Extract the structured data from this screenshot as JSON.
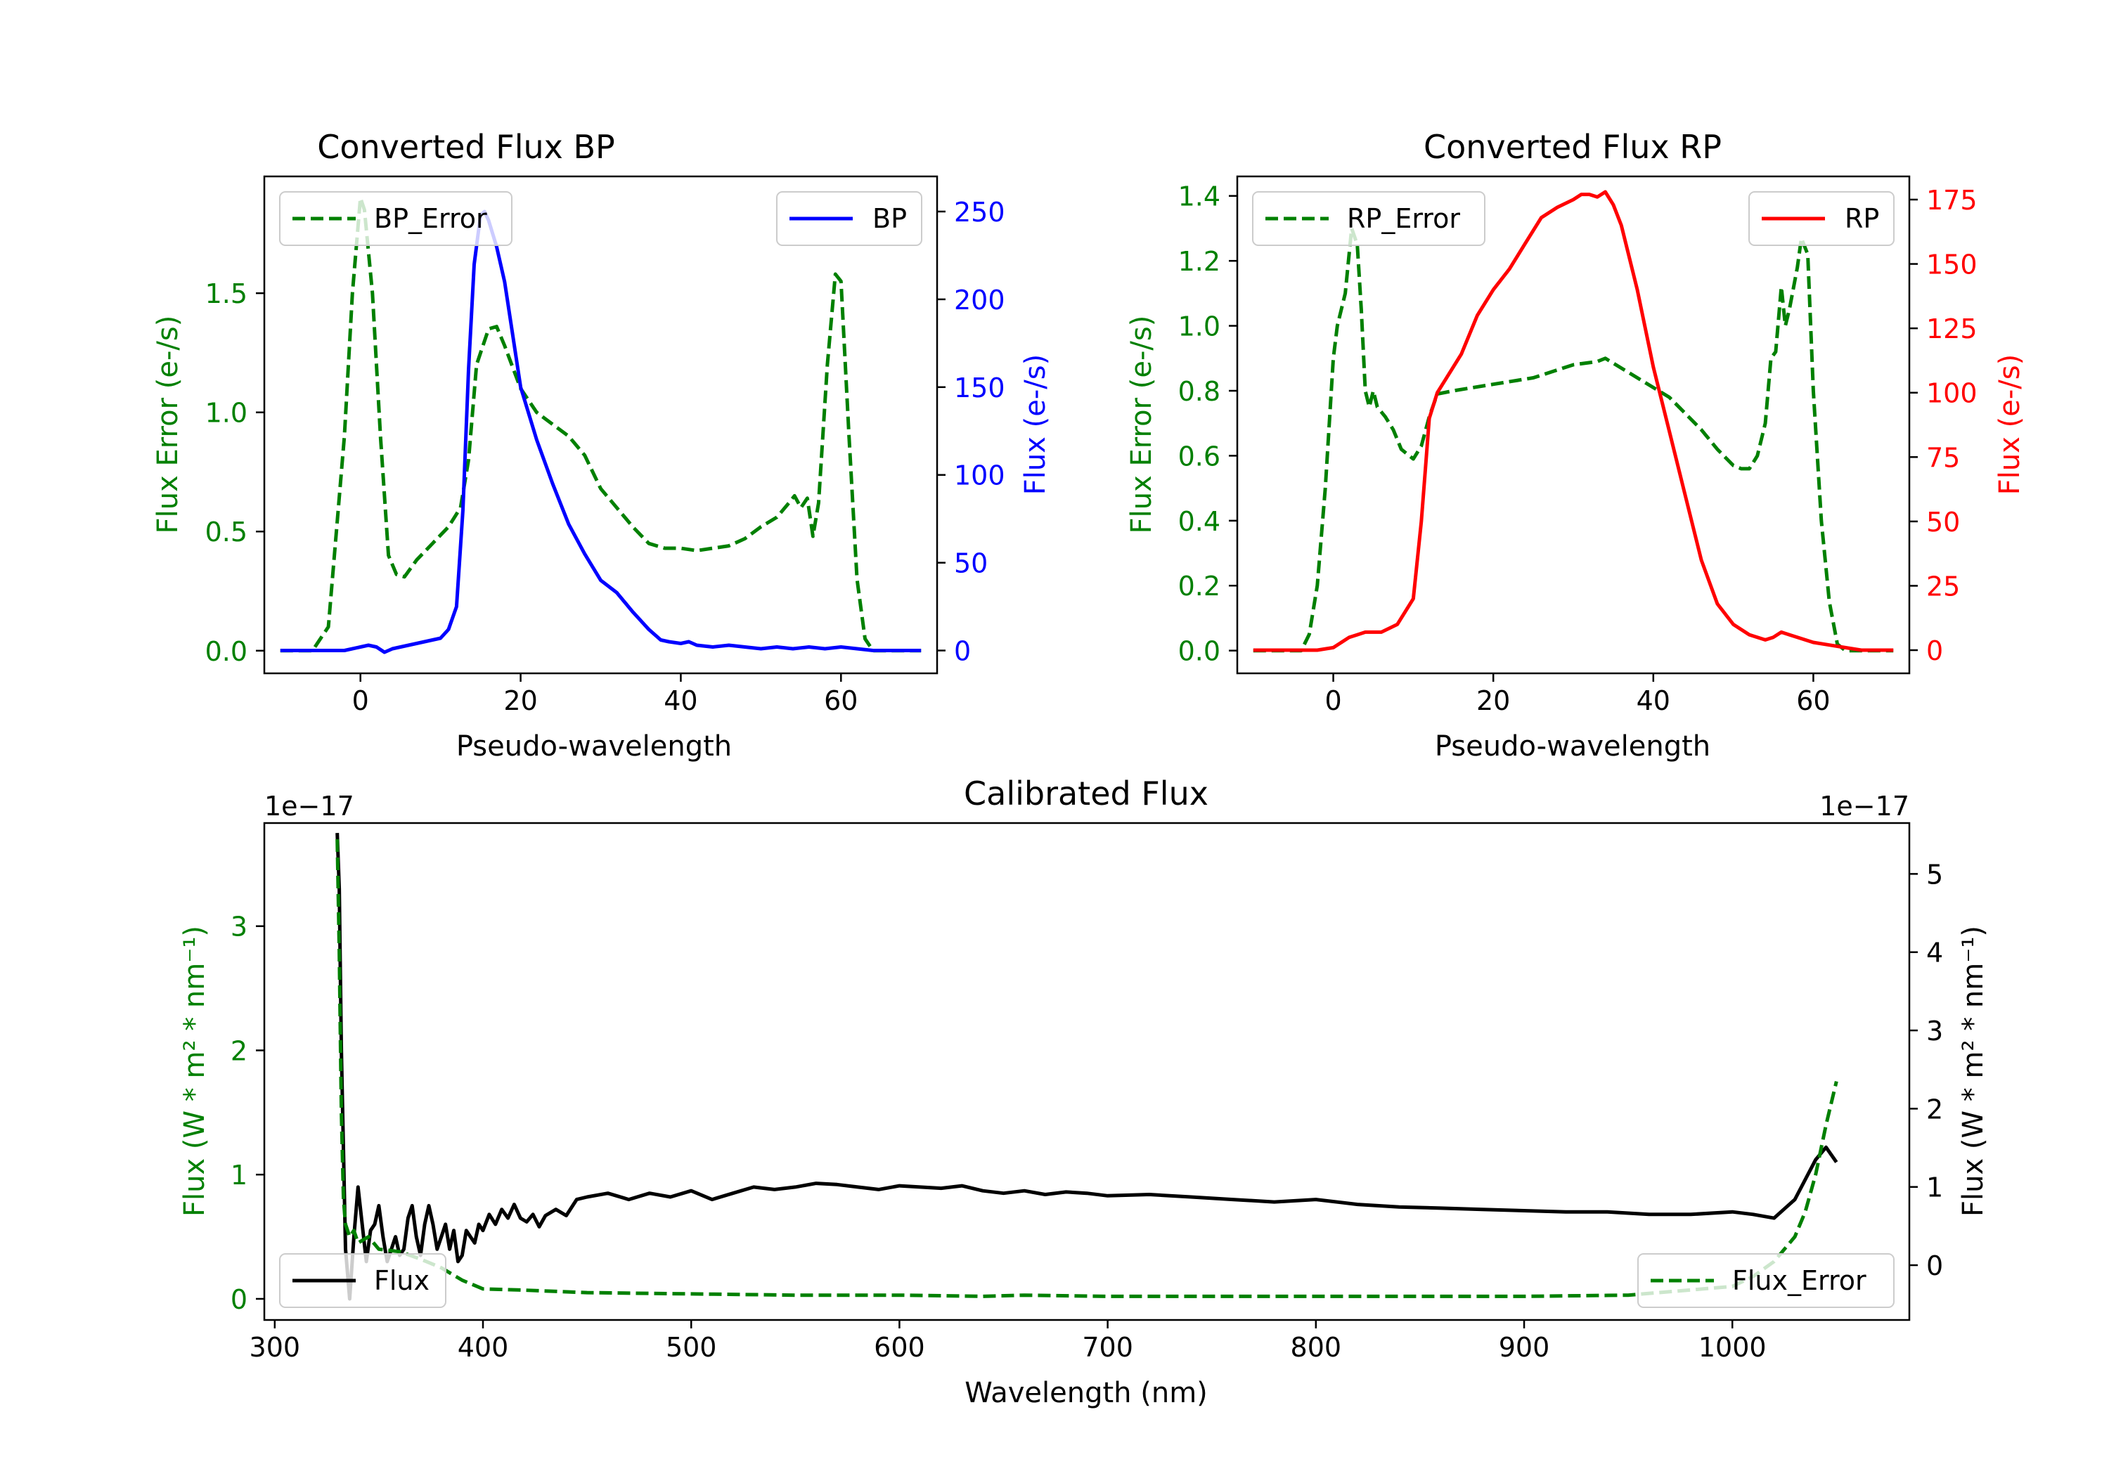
{
  "figure": {
    "background": "#ffffff"
  },
  "chart_data": [
    {
      "id": "bp",
      "type": "line",
      "title": "Converted Flux BP",
      "xlabel": "Pseudo-wavelength",
      "xlim": [
        -12,
        72
      ],
      "xticks": [
        0,
        20,
        40,
        60
      ],
      "left_axis": {
        "label": "Flux Error (e-/s)",
        "color": "#008000",
        "ylim": [
          -0.095,
          1.99
        ],
        "ticks": [
          0.0,
          0.5,
          1.0,
          1.5
        ],
        "tick_labels": [
          "0.0",
          "0.5",
          "1.0",
          "1.5"
        ]
      },
      "right_axis": {
        "label": "Flux (e-/s)",
        "color": "#0000ff",
        "ylim": [
          -13,
          270
        ],
        "ticks": [
          0,
          50,
          100,
          150,
          200,
          250
        ],
        "tick_labels": [
          "0",
          "50",
          "100",
          "150",
          "200",
          "250"
        ]
      },
      "series": [
        {
          "name": "BP_Error",
          "axis": "left",
          "style": "dashed",
          "color": "#008000",
          "x": [
            -10,
            -6,
            -4,
            -2,
            -1,
            0,
            0.5,
            1.5,
            2.5,
            3.5,
            4.5,
            5.5,
            7,
            9,
            11,
            12.5,
            13.5,
            14.5,
            16,
            17,
            18,
            20,
            22,
            24,
            26,
            28,
            30,
            32,
            34,
            36,
            38,
            40,
            42,
            44,
            46,
            48,
            50,
            52,
            53.5,
            54.2,
            55,
            55.8,
            56.5,
            57.2,
            58.3,
            59.3,
            60,
            61,
            62,
            63,
            64,
            65,
            67,
            70
          ],
          "values": [
            0,
            0,
            0.1,
            0.9,
            1.5,
            1.9,
            1.85,
            1.5,
            0.9,
            0.4,
            0.32,
            0.31,
            0.38,
            0.45,
            0.52,
            0.6,
            0.8,
            1.2,
            1.35,
            1.36,
            1.28,
            1.1,
            1.0,
            0.95,
            0.9,
            0.82,
            0.68,
            0.6,
            0.52,
            0.45,
            0.43,
            0.43,
            0.42,
            0.43,
            0.44,
            0.47,
            0.52,
            0.56,
            0.62,
            0.65,
            0.6,
            0.64,
            0.48,
            0.62,
            1.2,
            1.58,
            1.55,
            0.9,
            0.3,
            0.05,
            0,
            0,
            0,
            0
          ]
        },
        {
          "name": "BP",
          "axis": "right",
          "style": "solid",
          "color": "#0000ff",
          "x": [
            -10,
            -4,
            -2,
            0,
            1,
            2,
            3,
            4,
            6,
            8,
            10,
            11,
            12,
            12.8,
            13.5,
            14.2,
            15,
            15.5,
            16,
            17,
            18,
            19,
            20,
            22,
            24,
            26,
            28,
            30,
            32,
            34,
            36,
            37.5,
            38.5,
            40,
            41,
            42,
            44,
            46,
            48,
            50,
            52,
            54,
            56,
            58,
            60,
            62,
            64,
            66,
            70
          ],
          "values": [
            0,
            0,
            0,
            2,
            3,
            2,
            -1,
            1,
            3,
            5,
            7,
            12,
            25,
            80,
            160,
            220,
            248,
            250,
            245,
            230,
            210,
            180,
            150,
            120,
            95,
            72,
            55,
            40,
            33,
            22,
            12,
            6,
            5,
            4,
            5,
            3,
            2,
            3,
            2,
            1,
            2,
            1,
            2,
            1,
            2,
            1,
            0,
            0,
            0
          ]
        }
      ],
      "legend": [
        {
          "label": "BP_Error",
          "position": "upper-left"
        },
        {
          "label": "BP",
          "position": "upper-right"
        }
      ]
    },
    {
      "id": "rp",
      "type": "line",
      "title": "Converted Flux RP",
      "xlabel": "Pseudo-wavelength",
      "xlim": [
        -12,
        72
      ],
      "xticks": [
        0,
        20,
        40,
        60
      ],
      "left_axis": {
        "label": "Flux Error (e-/s)",
        "color": "#008000",
        "ylim": [
          -0.07,
          1.46
        ],
        "ticks": [
          0.0,
          0.2,
          0.4,
          0.6,
          0.8,
          1.0,
          1.2,
          1.4
        ],
        "tick_labels": [
          "0.0",
          "0.2",
          "0.4",
          "0.6",
          "0.8",
          "1.0",
          "1.2",
          "1.4"
        ]
      },
      "right_axis": {
        "label": "Flux (e-/s)",
        "color": "#ff0000",
        "ylim": [
          -9,
          184
        ],
        "ticks": [
          0,
          25,
          50,
          75,
          100,
          125,
          150,
          175
        ],
        "tick_labels": [
          "0",
          "25",
          "50",
          "75",
          "100",
          "125",
          "150",
          "175"
        ]
      },
      "series": [
        {
          "name": "RP_Error",
          "axis": "left",
          "style": "dashed",
          "color": "#008000",
          "x": [
            -10,
            -5,
            -4,
            -3,
            -2,
            -1,
            0,
            0.5,
            1.5,
            2.3,
            3,
            3.5,
            4,
            4.5,
            5,
            5.5,
            6.5,
            7.5,
            8.5,
            10,
            11,
            12,
            13,
            15,
            20,
            25,
            30,
            33,
            34,
            38,
            42,
            46,
            48,
            50,
            51,
            52,
            53,
            54,
            54.7,
            55.3,
            56,
            56.5,
            57,
            58,
            58.5,
            59.3,
            60,
            61,
            62,
            63,
            64,
            65,
            67,
            70
          ],
          "values": [
            0,
            0,
            0,
            0.05,
            0.2,
            0.5,
            0.9,
            1.0,
            1.1,
            1.3,
            1.25,
            1.05,
            0.8,
            0.75,
            0.8,
            0.75,
            0.72,
            0.68,
            0.62,
            0.59,
            0.63,
            0.72,
            0.79,
            0.8,
            0.82,
            0.84,
            0.88,
            0.89,
            0.9,
            0.84,
            0.78,
            0.68,
            0.62,
            0.57,
            0.56,
            0.56,
            0.6,
            0.7,
            0.9,
            0.92,
            1.12,
            1.0,
            1.05,
            1.18,
            1.27,
            1.22,
            0.8,
            0.4,
            0.15,
            0.02,
            0,
            0,
            0,
            0
          ]
        },
        {
          "name": "RP",
          "axis": "right",
          "style": "solid",
          "color": "#ff0000",
          "x": [
            -10,
            -2,
            0,
            1,
            2,
            3,
            4,
            6,
            8,
            10,
            11,
            11.5,
            12,
            13,
            14,
            16,
            18,
            20,
            22,
            24,
            26,
            28,
            30,
            31,
            32,
            33,
            34,
            35,
            36,
            38,
            40,
            42,
            44,
            46,
            48,
            50,
            52,
            54,
            55,
            56,
            57,
            58,
            60,
            62,
            64,
            66,
            70
          ],
          "values": [
            0,
            0,
            1,
            3,
            5,
            6,
            7,
            7,
            10,
            20,
            50,
            70,
            90,
            100,
            105,
            115,
            130,
            140,
            148,
            158,
            168,
            172,
            175,
            177,
            177,
            176,
            178,
            173,
            165,
            140,
            110,
            85,
            60,
            35,
            18,
            10,
            6,
            4,
            5,
            7,
            6,
            5,
            3,
            2,
            1,
            0,
            0
          ]
        }
      ],
      "legend": [
        {
          "label": "RP_Error",
          "position": "upper-left"
        },
        {
          "label": "RP",
          "position": "upper-right"
        }
      ]
    },
    {
      "id": "cal",
      "type": "line",
      "title": "Calibrated Flux",
      "xlabel": "Wavelength (nm)",
      "xlim": [
        295,
        1085
      ],
      "xticks": [
        300,
        400,
        500,
        600,
        700,
        800,
        900,
        1000
      ],
      "left_axis": {
        "label": "Flux (W * m² * nm⁻¹)",
        "color": "#008000",
        "offset_text": "1e−17",
        "ylim": [
          -0.17,
          3.83
        ],
        "ticks": [
          0,
          1,
          2,
          3
        ],
        "tick_labels": [
          "0",
          "1",
          "2",
          "3"
        ]
      },
      "right_axis": {
        "label": "Flux (W * m² * nm⁻¹)",
        "color": "#000000",
        "offset_text": "1e−17",
        "ylim": [
          -0.7,
          5.65
        ],
        "ticks": [
          0,
          1,
          2,
          3,
          4,
          5
        ],
        "tick_labels": [
          "0",
          "1",
          "2",
          "3",
          "4",
          "5"
        ]
      },
      "series": [
        {
          "name": "Flux",
          "axis": "left",
          "style": "solid",
          "color": "#000000",
          "x": [
            330,
            331,
            332,
            334,
            336,
            338,
            340,
            342,
            344,
            346,
            348,
            350,
            352,
            354,
            356,
            358,
            360,
            362,
            364,
            366,
            368,
            370,
            372,
            374,
            376,
            378,
            380,
            382,
            384,
            386,
            388,
            390,
            392,
            394,
            396,
            398,
            400,
            403,
            406,
            409,
            412,
            415,
            418,
            421,
            424,
            427,
            430,
            435,
            440,
            445,
            450,
            460,
            470,
            480,
            490,
            500,
            510,
            520,
            530,
            540,
            550,
            560,
            570,
            580,
            590,
            600,
            610,
            620,
            630,
            640,
            650,
            660,
            670,
            680,
            690,
            700,
            720,
            740,
            760,
            780,
            800,
            820,
            840,
            860,
            880,
            900,
            920,
            940,
            960,
            980,
            1000,
            1010,
            1020,
            1030,
            1040,
            1045,
            1050
          ],
          "values": [
            3.75,
            3.3,
            2.0,
            0.4,
            0.0,
            0.5,
            0.9,
            0.6,
            0.3,
            0.55,
            0.6,
            0.75,
            0.5,
            0.3,
            0.4,
            0.5,
            0.35,
            0.4,
            0.65,
            0.75,
            0.5,
            0.35,
            0.6,
            0.75,
            0.6,
            0.4,
            0.5,
            0.6,
            0.4,
            0.55,
            0.3,
            0.35,
            0.55,
            0.5,
            0.45,
            0.6,
            0.55,
            0.68,
            0.6,
            0.72,
            0.65,
            0.76,
            0.65,
            0.62,
            0.68,
            0.58,
            0.67,
            0.72,
            0.67,
            0.8,
            0.82,
            0.85,
            0.8,
            0.85,
            0.82,
            0.87,
            0.8,
            0.85,
            0.9,
            0.88,
            0.9,
            0.93,
            0.92,
            0.9,
            0.88,
            0.91,
            0.9,
            0.89,
            0.91,
            0.87,
            0.85,
            0.87,
            0.84,
            0.86,
            0.85,
            0.83,
            0.84,
            0.82,
            0.8,
            0.78,
            0.8,
            0.76,
            0.74,
            0.73,
            0.72,
            0.71,
            0.7,
            0.7,
            0.68,
            0.68,
            0.7,
            0.68,
            0.65,
            0.8,
            1.12,
            1.22,
            1.1
          ]
        },
        {
          "name": "Flux_Error",
          "axis": "left",
          "style": "dashed",
          "color": "#008000",
          "x": [
            330,
            331,
            332,
            333,
            334,
            336,
            338,
            340,
            345,
            350,
            360,
            370,
            380,
            390,
            400,
            420,
            450,
            500,
            550,
            600,
            640,
            660,
            700,
            750,
            800,
            850,
            900,
            950,
            1000,
            1010,
            1020,
            1030,
            1035,
            1040,
            1045,
            1050
          ],
          "values": [
            3.7,
            2.8,
            1.5,
            0.8,
            0.6,
            0.5,
            0.55,
            0.45,
            0.5,
            0.4,
            0.38,
            0.32,
            0.25,
            0.15,
            0.08,
            0.07,
            0.05,
            0.04,
            0.03,
            0.03,
            0.02,
            0.03,
            0.02,
            0.02,
            0.02,
            0.02,
            0.02,
            0.03,
            0.1,
            0.18,
            0.3,
            0.5,
            0.7,
            1.0,
            1.4,
            1.75
          ]
        }
      ],
      "legend": [
        {
          "label": "Flux",
          "position": "lower-left"
        },
        {
          "label": "Flux_Error",
          "position": "lower-right"
        }
      ]
    }
  ]
}
